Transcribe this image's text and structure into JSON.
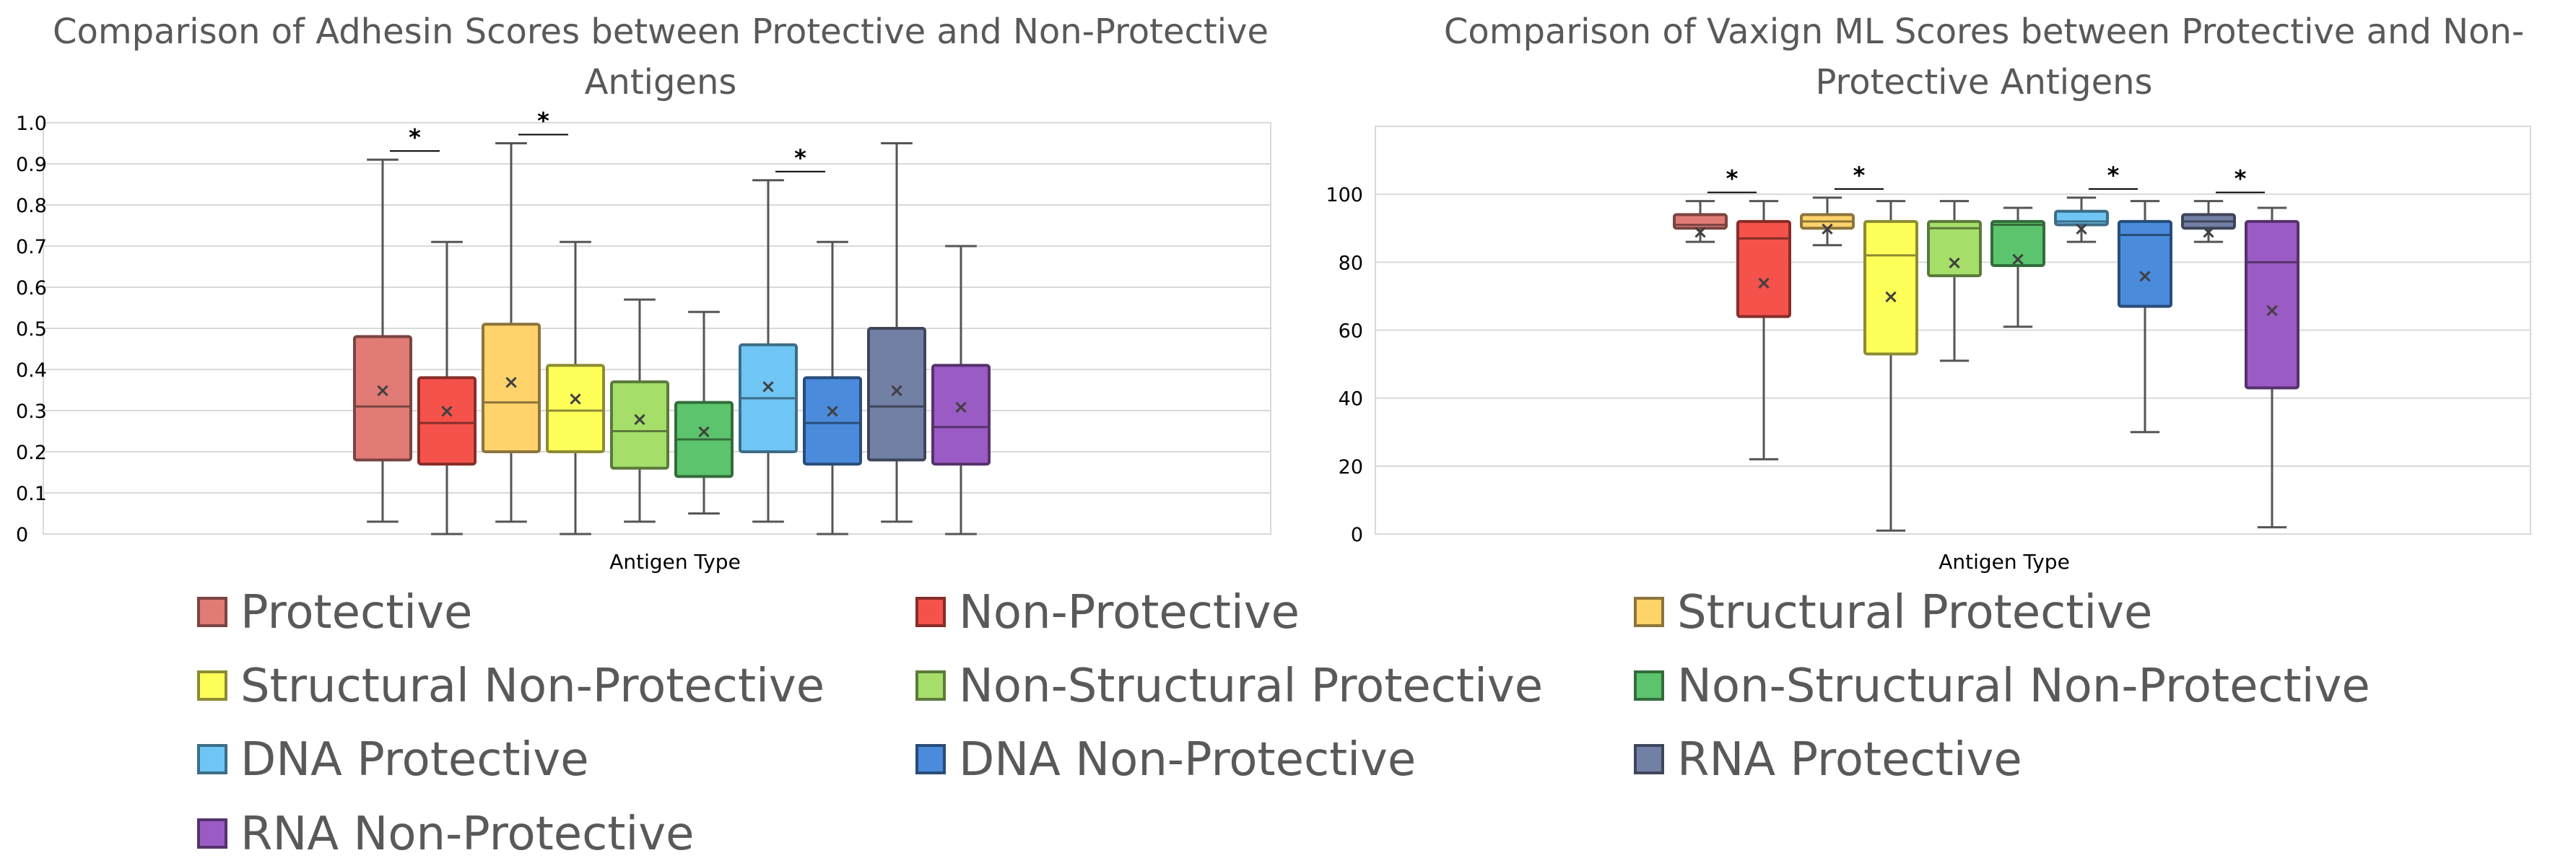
{
  "legend": [
    {
      "label": "Protective",
      "color": "#e07b76"
    },
    {
      "label": "Non-Protective",
      "color": "#f5524b"
    },
    {
      "label": "Structural Protective",
      "color": "#ffd36b"
    },
    {
      "label": "Structural Non-Protective",
      "color": "#ffff5a"
    },
    {
      "label": "Non-Structural Protective",
      "color": "#a6de6a"
    },
    {
      "label": "Non-Structural Non-Protective",
      "color": "#5cc46c"
    },
    {
      "label": "DNA Protective",
      "color": "#6fc6f5"
    },
    {
      "label": "DNA Non-Protective",
      "color": "#4a8bdc"
    },
    {
      "label": "RNA Protective",
      "color": "#7380a5"
    },
    {
      "label": "RNA Non-Protective",
      "color": "#9a5bc4"
    }
  ],
  "chart_data": [
    {
      "type": "boxplot",
      "title_lines": [
        "Comparison of Adhesin Scores between Protective and Non-Protective",
        "Antigens"
      ],
      "xlabel": "Antigen Type",
      "ylabel": "",
      "ylim": [
        0,
        1.0
      ],
      "yticks": [
        {
          "value": 0,
          "label": "0"
        },
        {
          "value": 0.1,
          "label": "0.1"
        },
        {
          "value": 0.2,
          "label": "0.2"
        },
        {
          "value": 0.3,
          "label": "0.3"
        },
        {
          "value": 0.4,
          "label": "0.4"
        },
        {
          "value": 0.5,
          "label": "0.5"
        },
        {
          "value": 0.6,
          "label": "0.6"
        },
        {
          "value": 0.7,
          "label": "0.7"
        },
        {
          "value": 0.8,
          "label": "0.8"
        },
        {
          "value": 0.9,
          "label": "0.9"
        },
        {
          "value": 1.0,
          "label": "1.0"
        }
      ],
      "boxes": [
        {
          "name": "Protective",
          "min": 0.03,
          "q1": 0.18,
          "median": 0.31,
          "q3": 0.48,
          "max": 0.91,
          "mean": 0.35
        },
        {
          "name": "Non-Protective",
          "min": 0.0,
          "q1": 0.17,
          "median": 0.27,
          "q3": 0.38,
          "max": 0.71,
          "mean": 0.3
        },
        {
          "name": "Structural Protective",
          "min": 0.03,
          "q1": 0.2,
          "median": 0.32,
          "q3": 0.51,
          "max": 0.95,
          "mean": 0.37
        },
        {
          "name": "Structural Non-Protective",
          "min": 0.0,
          "q1": 0.2,
          "median": 0.3,
          "q3": 0.41,
          "max": 0.71,
          "mean": 0.33
        },
        {
          "name": "Non-Structural Protective",
          "min": 0.03,
          "q1": 0.16,
          "median": 0.25,
          "q3": 0.37,
          "max": 0.57,
          "mean": 0.28
        },
        {
          "name": "Non-Structural Non-Protective",
          "min": 0.05,
          "q1": 0.14,
          "median": 0.23,
          "q3": 0.32,
          "max": 0.54,
          "mean": 0.25
        },
        {
          "name": "DNA Protective",
          "min": 0.03,
          "q1": 0.2,
          "median": 0.33,
          "q3": 0.46,
          "max": 0.86,
          "mean": 0.36
        },
        {
          "name": "DNA Non-Protective",
          "min": 0.0,
          "q1": 0.17,
          "median": 0.27,
          "q3": 0.38,
          "max": 0.71,
          "mean": 0.3
        },
        {
          "name": "RNA Protective",
          "min": 0.03,
          "q1": 0.18,
          "median": 0.31,
          "q3": 0.5,
          "max": 0.95,
          "mean": 0.35
        },
        {
          "name": "RNA Non-Protective",
          "min": 0.0,
          "q1": 0.17,
          "median": 0.26,
          "q3": 0.41,
          "max": 0.7,
          "mean": 0.31
        }
      ],
      "significance": [
        {
          "pair": [
            0,
            1
          ],
          "label": "*"
        },
        {
          "pair": [
            2,
            3
          ],
          "label": "*"
        },
        {
          "pair": [
            6,
            7
          ],
          "label": "*"
        }
      ]
    },
    {
      "type": "boxplot",
      "title_lines": [
        "Comparison of Vaxign ML Scores between Protective and Non-",
        "Protective Antigens"
      ],
      "xlabel": "Antigen Type",
      "ylabel": "",
      "ylim": [
        0,
        120
      ],
      "yticks": [
        {
          "value": 0,
          "label": "0"
        },
        {
          "value": 20,
          "label": "20"
        },
        {
          "value": 40,
          "label": "40"
        },
        {
          "value": 60,
          "label": "60"
        },
        {
          "value": 80,
          "label": "80"
        },
        {
          "value": 100,
          "label": "100"
        }
      ],
      "boxes": [
        {
          "name": "Protective",
          "min": 86,
          "q1": 90,
          "median": 91,
          "q3": 94,
          "max": 98,
          "mean": 89
        },
        {
          "name": "Non-Protective",
          "min": 22,
          "q1": 64,
          "median": 87,
          "q3": 92,
          "max": 98,
          "mean": 74
        },
        {
          "name": "Structural Protective",
          "min": 85,
          "q1": 90,
          "median": 92,
          "q3": 94,
          "max": 99,
          "mean": 90
        },
        {
          "name": "Structural Non-Protective",
          "min": 1,
          "q1": 53,
          "median": 82,
          "q3": 92,
          "max": 98,
          "mean": 70
        },
        {
          "name": "Non-Structural Protective",
          "min": 51,
          "q1": 76,
          "median": 90,
          "q3": 92,
          "max": 98,
          "mean": 80
        },
        {
          "name": "Non-Structural Non-Protective",
          "min": 61,
          "q1": 79,
          "median": 91,
          "q3": 92,
          "max": 96,
          "mean": 81
        },
        {
          "name": "DNA Protective",
          "min": 86,
          "q1": 91,
          "median": 92,
          "q3": 95,
          "max": 99,
          "mean": 90
        },
        {
          "name": "DNA Non-Protective",
          "min": 30,
          "q1": 67,
          "median": 88,
          "q3": 92,
          "max": 98,
          "mean": 76
        },
        {
          "name": "RNA Protective",
          "min": 86,
          "q1": 90,
          "median": 92,
          "q3": 94,
          "max": 98,
          "mean": 89
        },
        {
          "name": "RNA Non-Protective",
          "min": 2,
          "q1": 43,
          "median": 80,
          "q3": 92,
          "max": 96,
          "mean": 66
        }
      ],
      "significance": [
        {
          "pair": [
            0,
            1
          ],
          "label": "*"
        },
        {
          "pair": [
            2,
            3
          ],
          "label": "*"
        },
        {
          "pair": [
            6,
            7
          ],
          "label": "*"
        },
        {
          "pair": [
            8,
            9
          ],
          "label": "*"
        }
      ]
    }
  ]
}
